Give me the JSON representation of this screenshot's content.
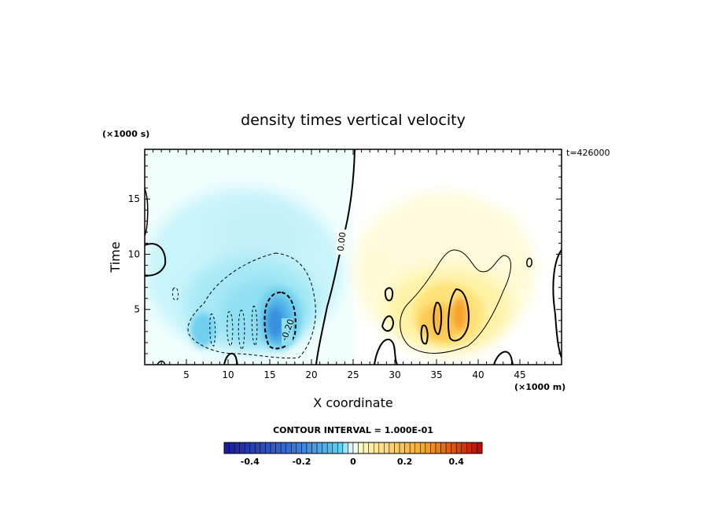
{
  "chart_data": {
    "type": "heatmap",
    "title": "density times vertical velocity",
    "xlabel": "X coordinate",
    "ylabel": "Time",
    "x_unit": "(×1000 m)",
    "y_unit": "(×1000 s)",
    "time_stamp": "t=426000",
    "xlim": [
      0,
      50
    ],
    "ylim": [
      0,
      19.5
    ],
    "x_ticks": [
      "5",
      "10",
      "15",
      "20",
      "25",
      "30",
      "35",
      "40",
      "45"
    ],
    "y_ticks": [
      "5",
      "10",
      "15"
    ],
    "contour_interval": "CONTOUR INTERVAL = 1.000E-01",
    "contour_labels": [
      "0.00",
      "-0.20"
    ],
    "colorbar": {
      "range": [
        -0.5,
        0.5
      ],
      "tick_labels": [
        "-0.4",
        "-0.2",
        "0",
        "0.2",
        "0.4"
      ],
      "colors": [
        "#1b1b99",
        "#3c78d8",
        "#5fd0ee",
        "#f4ffff",
        "#fff4b0",
        "#f4a623",
        "#c00000"
      ]
    },
    "features": [
      {
        "name": "negative lobe",
        "x_center": 16,
        "y_center": 4,
        "min_value": -0.3
      },
      {
        "name": "positive lobe",
        "x_center": 37,
        "y_center": 4.5,
        "max_value": 0.22
      }
    ]
  }
}
